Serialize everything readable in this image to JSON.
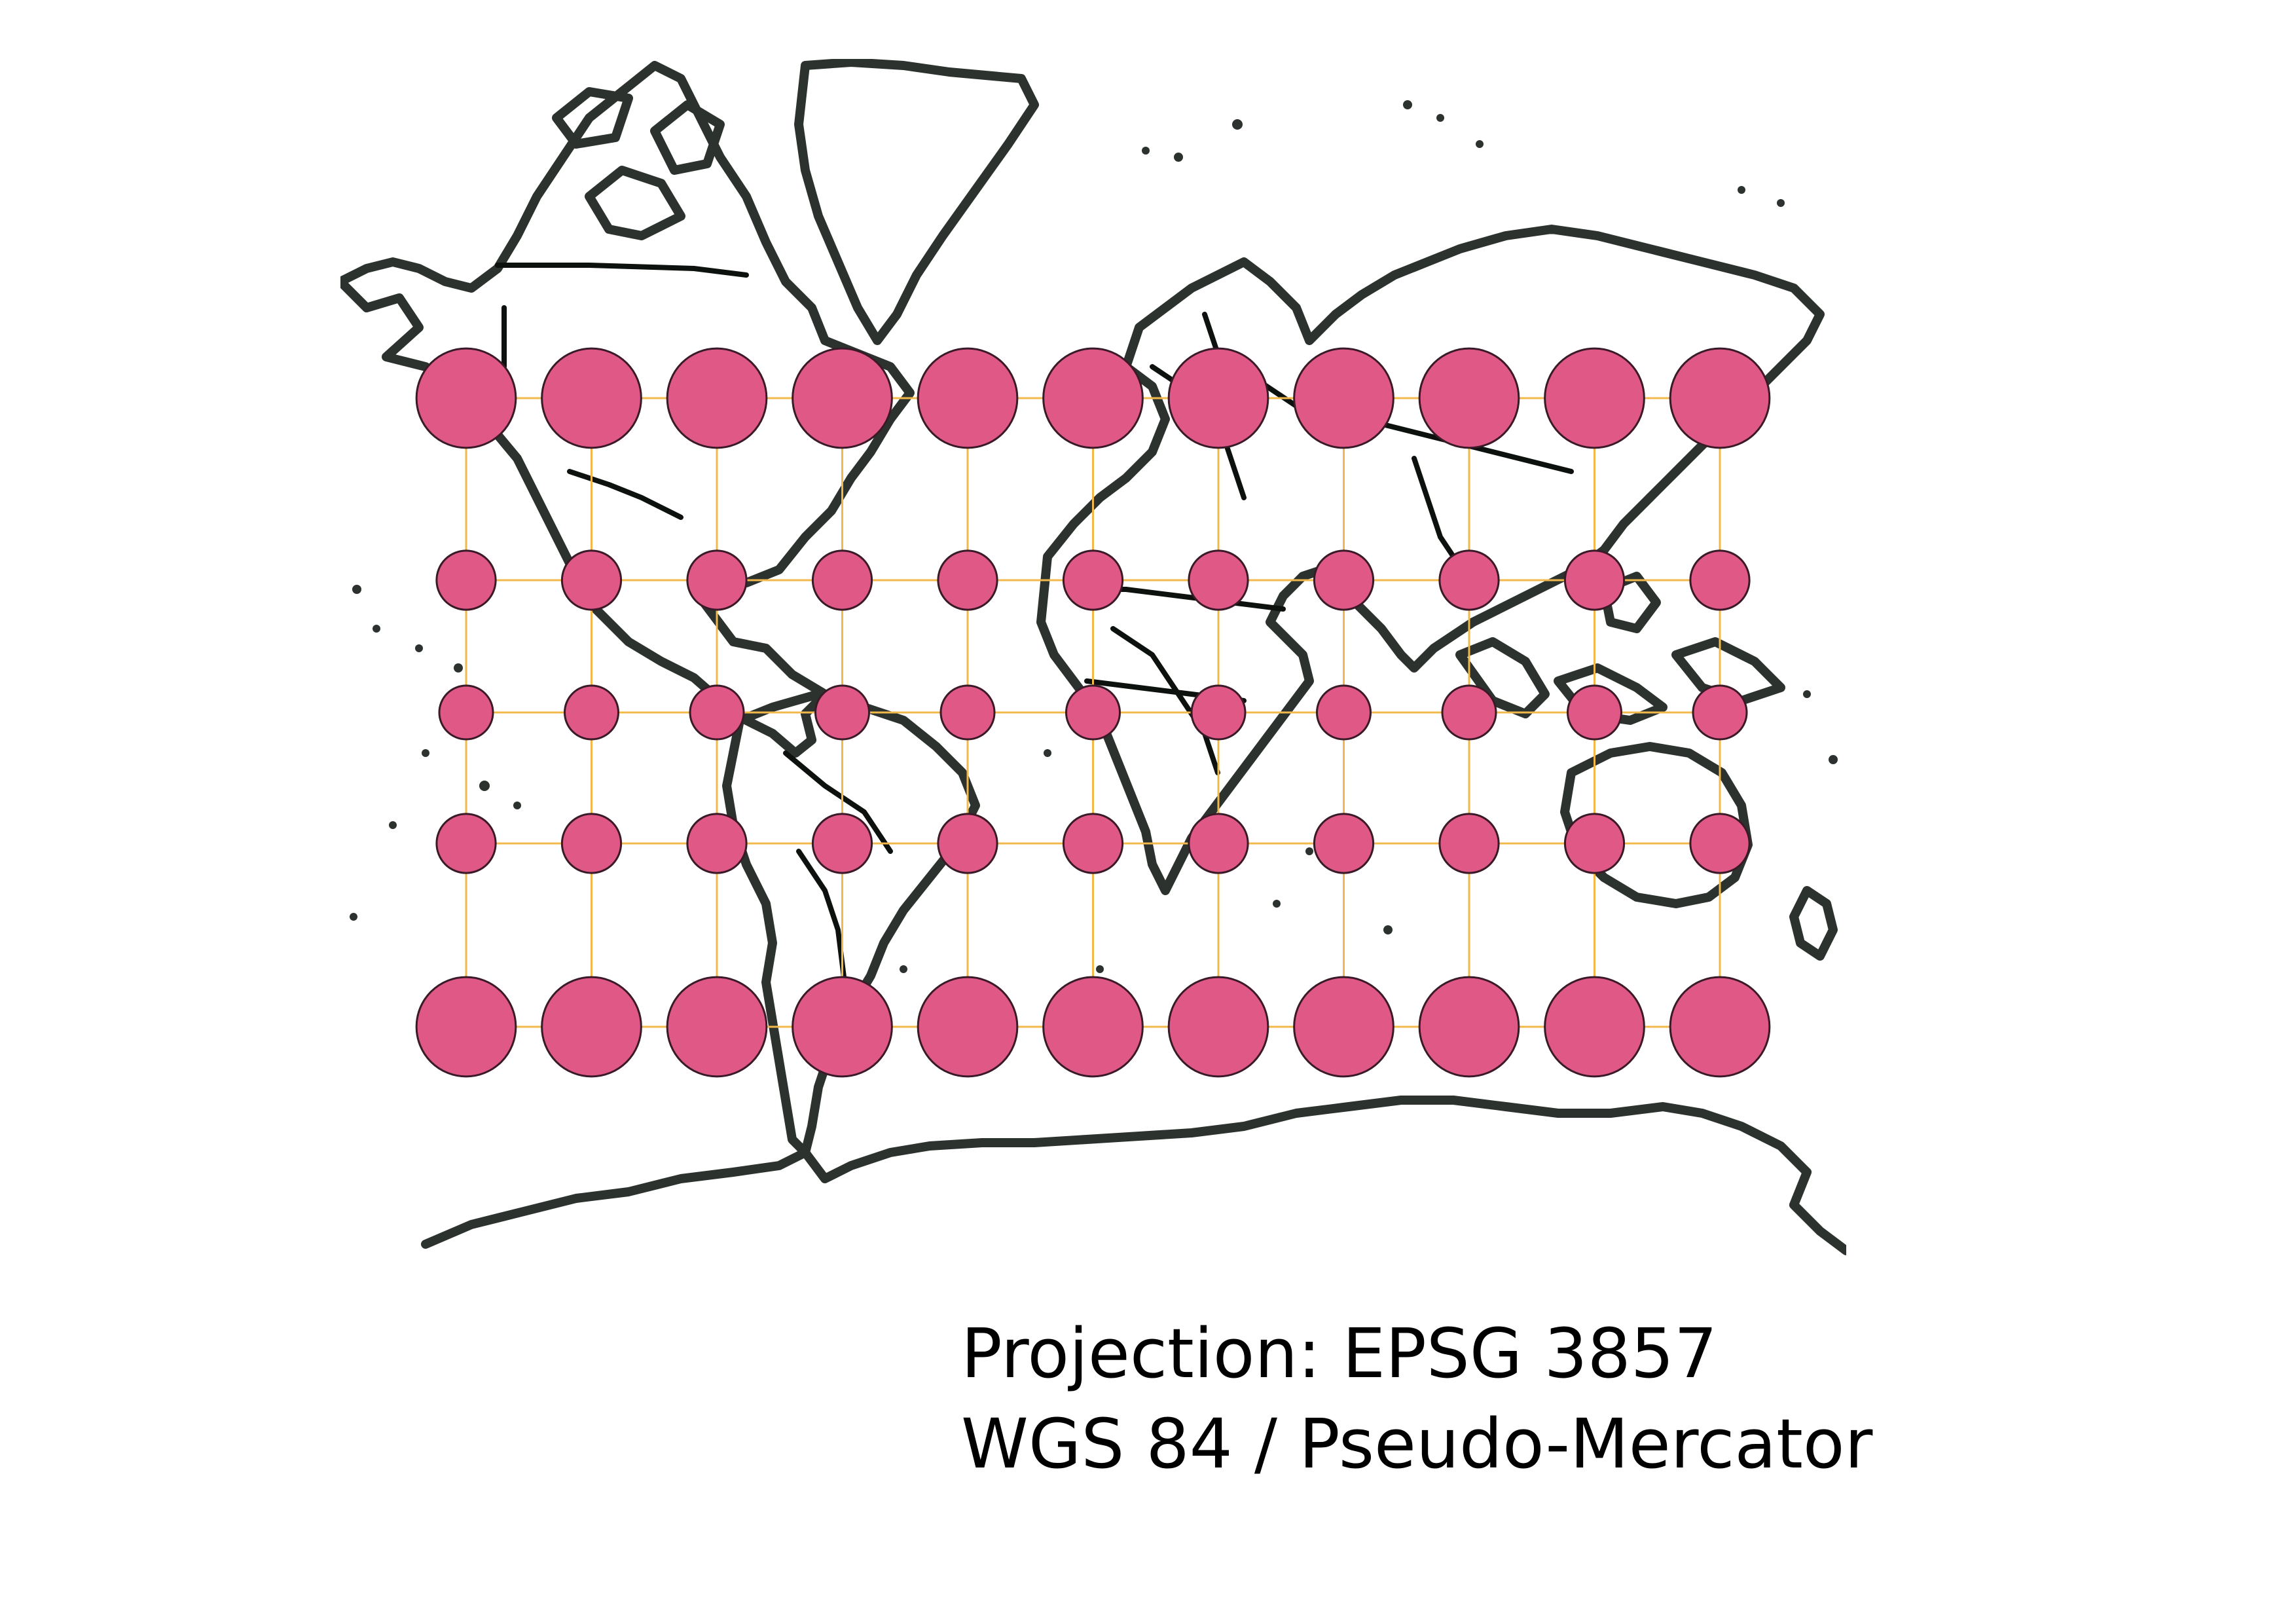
{
  "caption": {
    "line1": "Projection: EPSG 3857",
    "line2": "WGS 84 / Pseudo-Mercator"
  },
  "map": {
    "projection_code": "EPSG 3857",
    "crs_name": "WGS 84 / Pseudo-Mercator",
    "graticule_longitudes": [
      -180,
      -150,
      -120,
      -90,
      -60,
      -30,
      0,
      30,
      60,
      90,
      120
    ],
    "graticule_latitudes": [
      60,
      30,
      0,
      -30,
      -60
    ],
    "indicatrix_radius_ratio_by_latitude": {
      "60": 1.85,
      "30": 1.1,
      "0": 1.0,
      "-30": 1.1,
      "-60": 1.85
    },
    "colors": {
      "indicatrix_fill": "#E05886",
      "indicatrix_stroke": "#3a1a28",
      "graticule": "#F2B84B",
      "coastline": "#2c332e",
      "border": "#0d120e",
      "background": "#ffffff"
    }
  }
}
